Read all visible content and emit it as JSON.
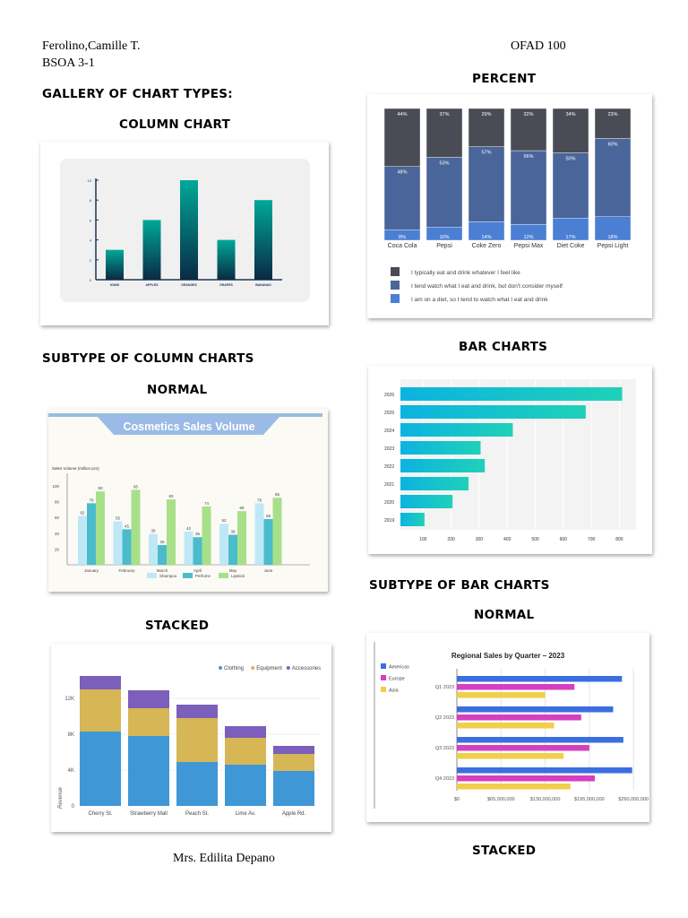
{
  "header": {
    "name": "Ferolino,Camille T.",
    "section": "BSOA 3-1",
    "course": "OFAD 100"
  },
  "headings": {
    "gallery": "GALLERY OF CHART TYPES:",
    "column_chart": "COLUMN CHART",
    "subtype_column": "SUBTYPE OF COLUMN CHARTS",
    "normal_col": "NORMAL",
    "stacked_col": "STACKED",
    "percent": "PERCENT",
    "bar_charts": "BAR CHARTS",
    "subtype_bar": "SUBTYPE OF BAR CHARTS",
    "normal_bar": "NORMAL",
    "stacked_bar": "STACKED"
  },
  "footer": {
    "teacher": "Mrs. Edilita Depano"
  },
  "chart_data": [
    {
      "id": "column",
      "type": "bar",
      "title": "",
      "categories": [
        "KIWIS",
        "APPLES",
        "ORANGES",
        "GRAPES",
        "BANANAS"
      ],
      "values": [
        3,
        6,
        10,
        4,
        8
      ],
      "ylim": [
        0,
        10
      ],
      "yticks": [
        "0",
        "2",
        "4",
        "6",
        "8",
        "10"
      ],
      "colors": [
        "#00a898",
        "#0a2a44"
      ]
    },
    {
      "id": "cosmetics",
      "type": "bar",
      "title": "Cosmetics Sales Volume",
      "ylabel": "Sales Volume (million pcs)",
      "categories": [
        "January",
        "February",
        "March",
        "April",
        "May",
        "June"
      ],
      "series": [
        {
          "name": "Shampoo",
          "values": [
            62,
            55,
            39,
            42,
            52,
            78
          ],
          "color": "#bfe8f6"
        },
        {
          "name": "Perfume",
          "values": [
            78,
            45,
            25,
            35,
            38,
            58
          ],
          "color": "#4bbccb"
        },
        {
          "name": "Lipstick",
          "values": [
            93,
            95,
            83,
            74,
            68,
            85
          ],
          "color": "#a8e08a"
        }
      ],
      "ylim": [
        0,
        110
      ],
      "yticks": [
        "20",
        "40",
        "60",
        "80",
        "100"
      ]
    },
    {
      "id": "stacked_column",
      "type": "bar",
      "stacked": true,
      "ylabel": "Revenue",
      "categories": [
        "Cherry St.",
        "Strawberry Mall",
        "Peach St.",
        "Lime Av.",
        "Apple Rd."
      ],
      "series": [
        {
          "name": "Clothing",
          "values": [
            8.3,
            7.8,
            4.9,
            4.6,
            3.9
          ],
          "color": "#3f97d6"
        },
        {
          "name": "Equipment",
          "values": [
            4.7,
            3.1,
            4.9,
            3.0,
            1.9
          ],
          "color": "#d6b655"
        },
        {
          "name": "Accessories",
          "values": [
            1.5,
            2.0,
            1.5,
            1.3,
            0.9
          ],
          "color": "#7b5fbb"
        }
      ],
      "yticks": [
        "0",
        "4K",
        "8K",
        "12K"
      ],
      "legend": "top-right"
    },
    {
      "id": "percent",
      "type": "bar",
      "stacked": "percent",
      "categories": [
        "Coca Cola",
        "Pepsi",
        "Coke Zero",
        "Pepsi Max",
        "Diet Coke",
        "Pepsi Light"
      ],
      "series": [
        {
          "name": "I am on a diet, so I tend to watch what I eat and drink",
          "values": [
            8,
            10,
            14,
            12,
            17,
            18
          ],
          "color": "#4a7fd4"
        },
        {
          "name": "I tend watch what I eat and drink, but don't consider myself",
          "values": [
            48,
            53,
            57,
            56,
            50,
            60
          ],
          "color": "#4a6599"
        },
        {
          "name": "I typically eat and drink whatever I feel like",
          "values": [
            44,
            37,
            29,
            32,
            34,
            23
          ],
          "color": "#4a4c55"
        }
      ],
      "legend_order": [
        2,
        1,
        0
      ]
    },
    {
      "id": "bars",
      "type": "bar",
      "orientation": "horizontal",
      "categories": [
        "2026",
        "2025",
        "2024",
        "2023",
        "2022",
        "2021",
        "2020",
        "2019"
      ],
      "values": [
        810,
        680,
        420,
        305,
        320,
        262,
        205,
        105
      ],
      "xticks": [
        "100",
        "200",
        "300",
        "400",
        "500",
        "600",
        "700",
        "800"
      ],
      "colors": [
        "#0bb3e0",
        "#1fd1b8"
      ]
    },
    {
      "id": "regional",
      "type": "bar",
      "orientation": "horizontal",
      "title": "Regional Sales by Quarter – 2023",
      "categories": [
        "Q1 2023",
        "Q2 2023",
        "Q3 2023",
        "Q4 2023"
      ],
      "series": [
        {
          "name": "Americas",
          "values": [
            243000000,
            230000000,
            245000000,
            258000000
          ],
          "color": "#3b6fe0"
        },
        {
          "name": "Europe",
          "values": [
            173000000,
            183000000,
            195000000,
            203000000
          ],
          "color": "#d63fbf"
        },
        {
          "name": "Asia",
          "values": [
            130000000,
            143000000,
            157000000,
            167000000
          ],
          "color": "#f0cf4a"
        }
      ],
      "xlim": [
        0,
        260000000
      ],
      "xticks": [
        "$0",
        "$65,000,000",
        "$130,000,000",
        "$195,000,000",
        "$260,000,000"
      ],
      "legend": "top-left"
    }
  ]
}
